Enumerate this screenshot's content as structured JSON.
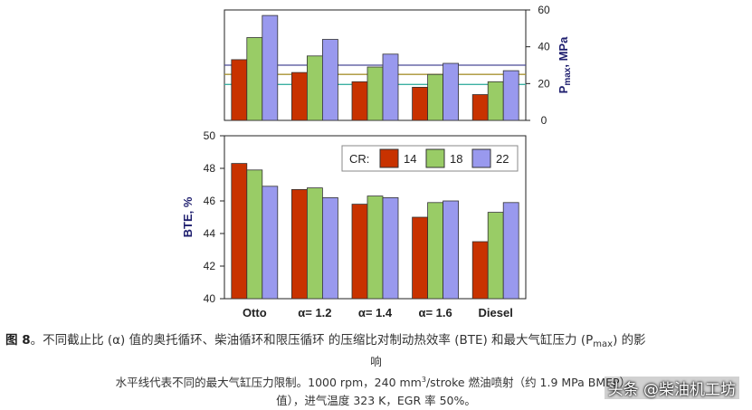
{
  "chart_data": [
    {
      "type": "bar",
      "categories": [
        "Otto",
        "α= 1.2",
        "α= 1.4",
        "α= 1.6",
        "Diesel"
      ],
      "series": [
        {
          "name": "14",
          "values": [
            33,
            26,
            21,
            18,
            14
          ]
        },
        {
          "name": "18",
          "values": [
            45,
            35,
            29,
            25,
            21
          ]
        },
        {
          "name": "22",
          "values": [
            57,
            44,
            36,
            31,
            27
          ]
        }
      ],
      "ylabel_main": "P",
      "ylabel_sub": "max",
      "ylabel_unit": ", MPa",
      "ylim": [
        0,
        60
      ],
      "yticks": [
        "0",
        "20",
        "40",
        "60"
      ],
      "reference_lines": [
        {
          "value": 30,
          "color": "#4a4a96"
        },
        {
          "value": 25,
          "color": "#a89232"
        },
        {
          "value": 19.5,
          "color": "#3cb0a2"
        }
      ]
    },
    {
      "type": "bar",
      "categories": [
        "Otto",
        "α= 1.2",
        "α= 1.4",
        "α= 1.6",
        "Diesel"
      ],
      "series": [
        {
          "name": "14",
          "values": [
            48.3,
            46.7,
            45.8,
            45.0,
            43.5
          ]
        },
        {
          "name": "18",
          "values": [
            47.9,
            46.8,
            46.3,
            45.9,
            45.3
          ]
        },
        {
          "name": "22",
          "values": [
            46.9,
            46.2,
            46.2,
            46.0,
            45.9
          ]
        }
      ],
      "ylabel": "BTE, %",
      "ylim": [
        40,
        50
      ],
      "yticks": [
        "40",
        "42",
        "44",
        "46",
        "48",
        "50"
      ],
      "legend_title": "CR:",
      "legend_position": "top-right"
    }
  ],
  "colors": {
    "series": [
      "#c83200",
      "#99cc66",
      "#9999ee"
    ],
    "bar_stroke": "#333333",
    "axis": "#222222"
  },
  "caption": {
    "label": "图 8",
    "part1": "。不同截止比 (α) 值的奥托循环、柴油循环和限压循环 的压缩比对制动热效率 (BTE) 和最大气缸压力 (P",
    "part1_sub": "max",
    "part1_end": ") 的影",
    "part1_wrap": "响",
    "line2a": "水平线代表不同的最大气缸压力限制。1000 rpm，240 mm",
    "line2_sup": "3",
    "line2b": "/stroke 燃油喷射（约 1.9 MPa BMEP），",
    "line3": "值），进气温度 323 K，EGR 率 50%。"
  },
  "watermark": "头条 @柴油机工坊"
}
